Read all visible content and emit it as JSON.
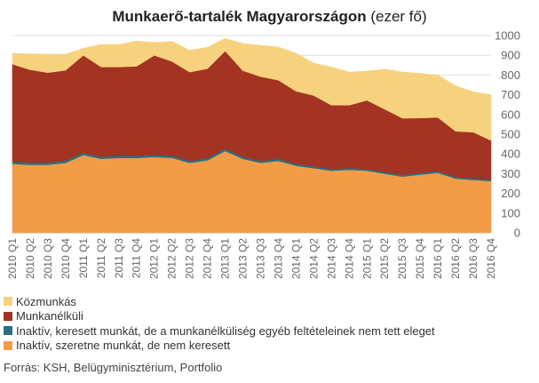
{
  "title": {
    "bold": "Munkaerő-tartalék Magyarországon",
    "normal": "(ezer fő)"
  },
  "source": "Forrás: KSH, Belügyminisztérium, Portfolio",
  "colors": {
    "kozmunkas": "#f7d27e",
    "munkanelkuli": "#a33322",
    "inaktiv_kereso": "#2a6f82",
    "inaktiv_szeretne": "#f39c48",
    "grid": "#dddddd",
    "tick_text": "#666666"
  },
  "chart_data": {
    "type": "area",
    "stacked": true,
    "title": "Munkaerő-tartalék Magyarországon (ezer fő)",
    "ylim": [
      0,
      1000
    ],
    "yticks": [
      0,
      100,
      200,
      300,
      400,
      500,
      600,
      700,
      800,
      900,
      1000
    ],
    "grid": true,
    "y_axis_position": "right",
    "legend_position": "bottom",
    "categories": [
      "2010 Q1",
      "2010 Q2",
      "2010 Q3",
      "2010 Q4",
      "2011 Q1",
      "2011 Q2",
      "2011 Q3",
      "2011 Q4",
      "2012 Q1",
      "2012 Q2",
      "2012 Q3",
      "2012 Q4",
      "2013 Q1",
      "2013 Q2",
      "2013 Q3",
      "2013 Q4",
      "2014 Q1",
      "2014 Q2",
      "2014 Q3",
      "2014 Q4",
      "2015 Q1",
      "2015 Q2",
      "2015 Q3",
      "2015 Q4",
      "2016 Q1",
      "2016 Q2",
      "2016 Q3",
      "2016 Q4"
    ],
    "series": [
      {
        "name": "Inaktív, szeretne munkát, de nem keresett",
        "color_key": "inaktiv_szeretne",
        "values": [
          350,
          345,
          345,
          355,
          395,
          375,
          380,
          380,
          385,
          380,
          355,
          368,
          415,
          375,
          355,
          365,
          340,
          328,
          315,
          320,
          315,
          300,
          285,
          295,
          305,
          275,
          268,
          262
        ]
      },
      {
        "name": "Inaktív, keresett munkát, de a munkanélküliség egyéb feltételeinek nem tett eleget",
        "color_key": "inaktiv_kereso",
        "values": [
          12,
          11,
          11,
          11,
          12,
          11,
          11,
          11,
          11,
          11,
          10,
          11,
          12,
          11,
          10,
          11,
          10,
          10,
          9,
          9,
          9,
          9,
          9,
          9,
          9,
          8,
          8,
          8
        ]
      },
      {
        "name": "Munkanélküli",
        "color_key": "munkanelkuli",
        "values": [
          493,
          471,
          456,
          458,
          493,
          455,
          450,
          453,
          504,
          478,
          450,
          453,
          495,
          436,
          427,
          398,
          368,
          358,
          323,
          318,
          348,
          318,
          287,
          278,
          271,
          232,
          234,
          198
        ]
      },
      {
        "name": "Közmunkás",
        "color_key": "kozmunkas",
        "values": [
          55,
          80,
          93,
          81,
          35,
          114,
          114,
          128,
          65,
          101,
          110,
          108,
          63,
          138,
          158,
          168,
          192,
          164,
          193,
          168,
          148,
          203,
          234,
          226,
          215,
          230,
          205,
          232
        ]
      }
    ]
  },
  "legend": [
    {
      "label": "Közmunkás",
      "color_key": "kozmunkas"
    },
    {
      "label": "Munkanélküli",
      "color_key": "munkanelkuli"
    },
    {
      "label": "Inaktív, keresett munkát, de a munkanélküliség egyéb feltételeinek nem tett eleget",
      "color_key": "inaktiv_kereso"
    },
    {
      "label": "Inaktív, szeretne munkát, de nem keresett",
      "color_key": "inaktiv_szeretne"
    }
  ]
}
